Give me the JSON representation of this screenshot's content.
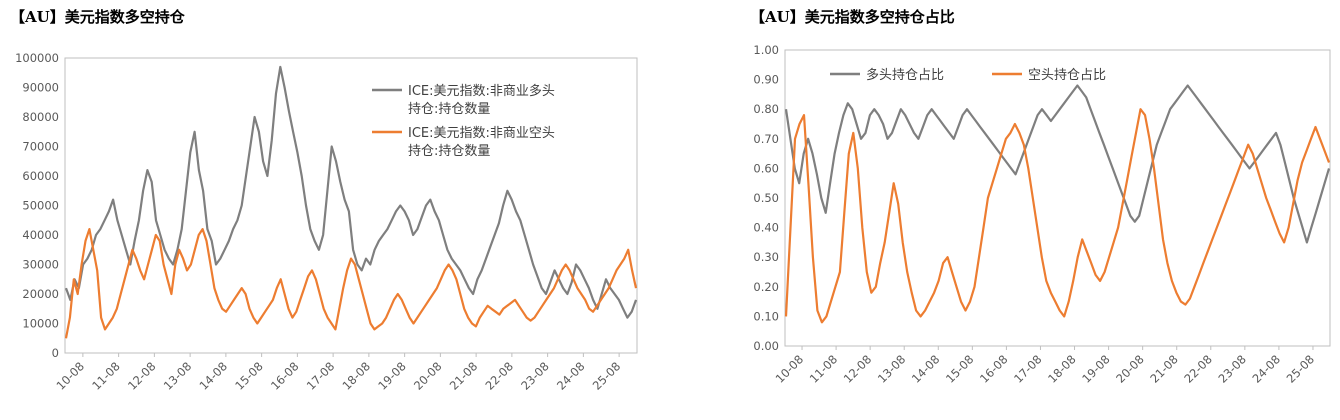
{
  "charts": {
    "left": {
      "title": "【AU】美元指数多空持仓"
    },
    "right": {
      "title": "【AU】美元指数多空持仓占比"
    }
  },
  "chart_data": [
    {
      "type": "line",
      "title": "【AU】美元指数多空持仓",
      "x_ticks": [
        "10-08",
        "11-08",
        "12-08",
        "13-08",
        "14-08",
        "15-08",
        "16-08",
        "17-08",
        "18-08",
        "19-08",
        "20-08",
        "21-08",
        "22-08",
        "23-08",
        "24-08",
        "25-08"
      ],
      "ylim": [
        0,
        100000
      ],
      "y_ticks": [
        "0",
        "10000",
        "20000",
        "30000",
        "40000",
        "50000",
        "60000",
        "70000",
        "80000",
        "90000",
        "100000"
      ],
      "grid": false,
      "legend": "top-right",
      "colors": [
        "#7f7f7f",
        "#ed7d31"
      ],
      "series": [
        {
          "name": "ICE:美元指数:非商业多头持仓:持仓数量",
          "legend_lines": [
            "ICE:美元指数:非商业多头",
            "持仓:持仓数量"
          ],
          "values": [
            22000,
            18000,
            25000,
            22000,
            30000,
            32000,
            35000,
            40000,
            42000,
            45000,
            48000,
            52000,
            45000,
            40000,
            35000,
            30000,
            38000,
            45000,
            55000,
            62000,
            58000,
            45000,
            40000,
            35000,
            32000,
            30000,
            35000,
            42000,
            55000,
            68000,
            75000,
            62000,
            55000,
            42000,
            38000,
            30000,
            32000,
            35000,
            38000,
            42000,
            45000,
            50000,
            60000,
            70000,
            80000,
            75000,
            65000,
            60000,
            72000,
            88000,
            97000,
            90000,
            82000,
            75000,
            68000,
            60000,
            50000,
            42000,
            38000,
            35000,
            40000,
            55000,
            70000,
            65000,
            58000,
            52000,
            48000,
            35000,
            30000,
            28000,
            32000,
            30000,
            35000,
            38000,
            40000,
            42000,
            45000,
            48000,
            50000,
            48000,
            45000,
            40000,
            42000,
            46000,
            50000,
            52000,
            48000,
            45000,
            40000,
            35000,
            32000,
            30000,
            28000,
            25000,
            22000,
            20000,
            25000,
            28000,
            32000,
            36000,
            40000,
            44000,
            50000,
            55000,
            52000,
            48000,
            45000,
            40000,
            35000,
            30000,
            26000,
            22000,
            20000,
            24000,
            28000,
            25000,
            22000,
            20000,
            24000,
            30000,
            28000,
            25000,
            22000,
            18000,
            15000,
            20000,
            25000,
            22000,
            20000,
            18000,
            15000,
            12000,
            14000,
            18000
          ]
        },
        {
          "name": "ICE:美元指数:非商业空头持仓:持仓数量",
          "legend_lines": [
            "ICE:美元指数:非商业空头",
            "持仓:持仓数量"
          ],
          "values": [
            5000,
            12000,
            25000,
            20000,
            30000,
            38000,
            42000,
            35000,
            28000,
            12000,
            8000,
            10000,
            12000,
            15000,
            20000,
            25000,
            30000,
            35000,
            32000,
            28000,
            25000,
            30000,
            35000,
            40000,
            38000,
            30000,
            25000,
            20000,
            30000,
            35000,
            32000,
            28000,
            30000,
            35000,
            40000,
            42000,
            38000,
            30000,
            22000,
            18000,
            15000,
            14000,
            16000,
            18000,
            20000,
            22000,
            20000,
            15000,
            12000,
            10000,
            12000,
            14000,
            16000,
            18000,
            22000,
            25000,
            20000,
            15000,
            12000,
            14000,
            18000,
            22000,
            26000,
            28000,
            25000,
            20000,
            15000,
            12000,
            10000,
            8000,
            15000,
            22000,
            28000,
            32000,
            30000,
            25000,
            20000,
            15000,
            10000,
            8000,
            9000,
            10000,
            12000,
            15000,
            18000,
            20000,
            18000,
            15000,
            12000,
            10000,
            12000,
            14000,
            16000,
            18000,
            20000,
            22000,
            25000,
            28000,
            30000,
            28000,
            25000,
            20000,
            15000,
            12000,
            10000,
            9000,
            12000,
            14000,
            16000,
            15000,
            14000,
            13000,
            15000,
            16000,
            17000,
            18000,
            16000,
            14000,
            12000,
            11000,
            12000,
            14000,
            16000,
            18000,
            20000,
            22000,
            25000,
            28000,
            30000,
            28000,
            25000,
            22000,
            20000,
            18000,
            15000,
            14000,
            16000,
            18000,
            20000,
            22000,
            25000,
            28000,
            30000,
            32000,
            35000,
            28000,
            22000
          ]
        }
      ]
    },
    {
      "type": "line",
      "title": "【AU】美元指数多空持仓占比",
      "x_ticks": [
        "10-08",
        "11-08",
        "12-08",
        "13-08",
        "14-08",
        "15-08",
        "16-08",
        "17-08",
        "18-08",
        "19-08",
        "20-08",
        "21-08",
        "22-08",
        "23-08",
        "24-08",
        "25-08"
      ],
      "ylim": [
        0,
        1
      ],
      "y_ticks": [
        "0.00",
        "0.10",
        "0.20",
        "0.30",
        "0.40",
        "0.50",
        "0.60",
        "0.70",
        "0.80",
        "0.90",
        "1.00"
      ],
      "grid": false,
      "legend": "top-left",
      "colors": [
        "#7f7f7f",
        "#ed7d31"
      ],
      "series": [
        {
          "name": "多头持仓占比",
          "values": [
            0.8,
            0.7,
            0.6,
            0.55,
            0.65,
            0.7,
            0.65,
            0.58,
            0.5,
            0.45,
            0.55,
            0.65,
            0.72,
            0.78,
            0.82,
            0.8,
            0.75,
            0.7,
            0.72,
            0.78,
            0.8,
            0.78,
            0.75,
            0.7,
            0.72,
            0.76,
            0.8,
            0.78,
            0.75,
            0.72,
            0.7,
            0.74,
            0.78,
            0.8,
            0.78,
            0.76,
            0.74,
            0.72,
            0.7,
            0.74,
            0.78,
            0.8,
            0.78,
            0.76,
            0.74,
            0.72,
            0.7,
            0.68,
            0.66,
            0.64,
            0.62,
            0.6,
            0.58,
            0.62,
            0.66,
            0.7,
            0.74,
            0.78,
            0.8,
            0.78,
            0.76,
            0.78,
            0.8,
            0.82,
            0.84,
            0.86,
            0.88,
            0.86,
            0.84,
            0.8,
            0.76,
            0.72,
            0.68,
            0.64,
            0.6,
            0.56,
            0.52,
            0.48,
            0.44,
            0.42,
            0.44,
            0.5,
            0.56,
            0.62,
            0.68,
            0.72,
            0.76,
            0.8,
            0.82,
            0.84,
            0.86,
            0.88,
            0.86,
            0.84,
            0.82,
            0.8,
            0.78,
            0.76,
            0.74,
            0.72,
            0.7,
            0.68,
            0.66,
            0.64,
            0.62,
            0.6,
            0.62,
            0.64,
            0.66,
            0.68,
            0.7,
            0.72,
            0.68,
            0.62,
            0.56,
            0.5,
            0.45,
            0.4,
            0.35,
            0.4,
            0.45,
            0.5,
            0.55,
            0.6
          ]
        },
        {
          "name": "空头持仓占比",
          "values": [
            0.1,
            0.4,
            0.7,
            0.75,
            0.78,
            0.55,
            0.3,
            0.12,
            0.08,
            0.1,
            0.15,
            0.2,
            0.25,
            0.45,
            0.65,
            0.72,
            0.6,
            0.4,
            0.25,
            0.18,
            0.2,
            0.28,
            0.35,
            0.45,
            0.55,
            0.48,
            0.35,
            0.25,
            0.18,
            0.12,
            0.1,
            0.12,
            0.15,
            0.18,
            0.22,
            0.28,
            0.3,
            0.25,
            0.2,
            0.15,
            0.12,
            0.15,
            0.2,
            0.3,
            0.4,
            0.5,
            0.55,
            0.6,
            0.65,
            0.7,
            0.72,
            0.75,
            0.72,
            0.68,
            0.6,
            0.5,
            0.4,
            0.3,
            0.22,
            0.18,
            0.15,
            0.12,
            0.1,
            0.15,
            0.22,
            0.3,
            0.36,
            0.32,
            0.28,
            0.24,
            0.22,
            0.25,
            0.3,
            0.35,
            0.4,
            0.48,
            0.56,
            0.64,
            0.72,
            0.8,
            0.78,
            0.7,
            0.6,
            0.48,
            0.36,
            0.28,
            0.22,
            0.18,
            0.15,
            0.14,
            0.16,
            0.2,
            0.24,
            0.28,
            0.32,
            0.36,
            0.4,
            0.44,
            0.48,
            0.52,
            0.56,
            0.6,
            0.64,
            0.68,
            0.65,
            0.6,
            0.55,
            0.5,
            0.46,
            0.42,
            0.38,
            0.35,
            0.4,
            0.48,
            0.56,
            0.62,
            0.66,
            0.7,
            0.74,
            0.7,
            0.66,
            0.62
          ]
        }
      ]
    }
  ]
}
